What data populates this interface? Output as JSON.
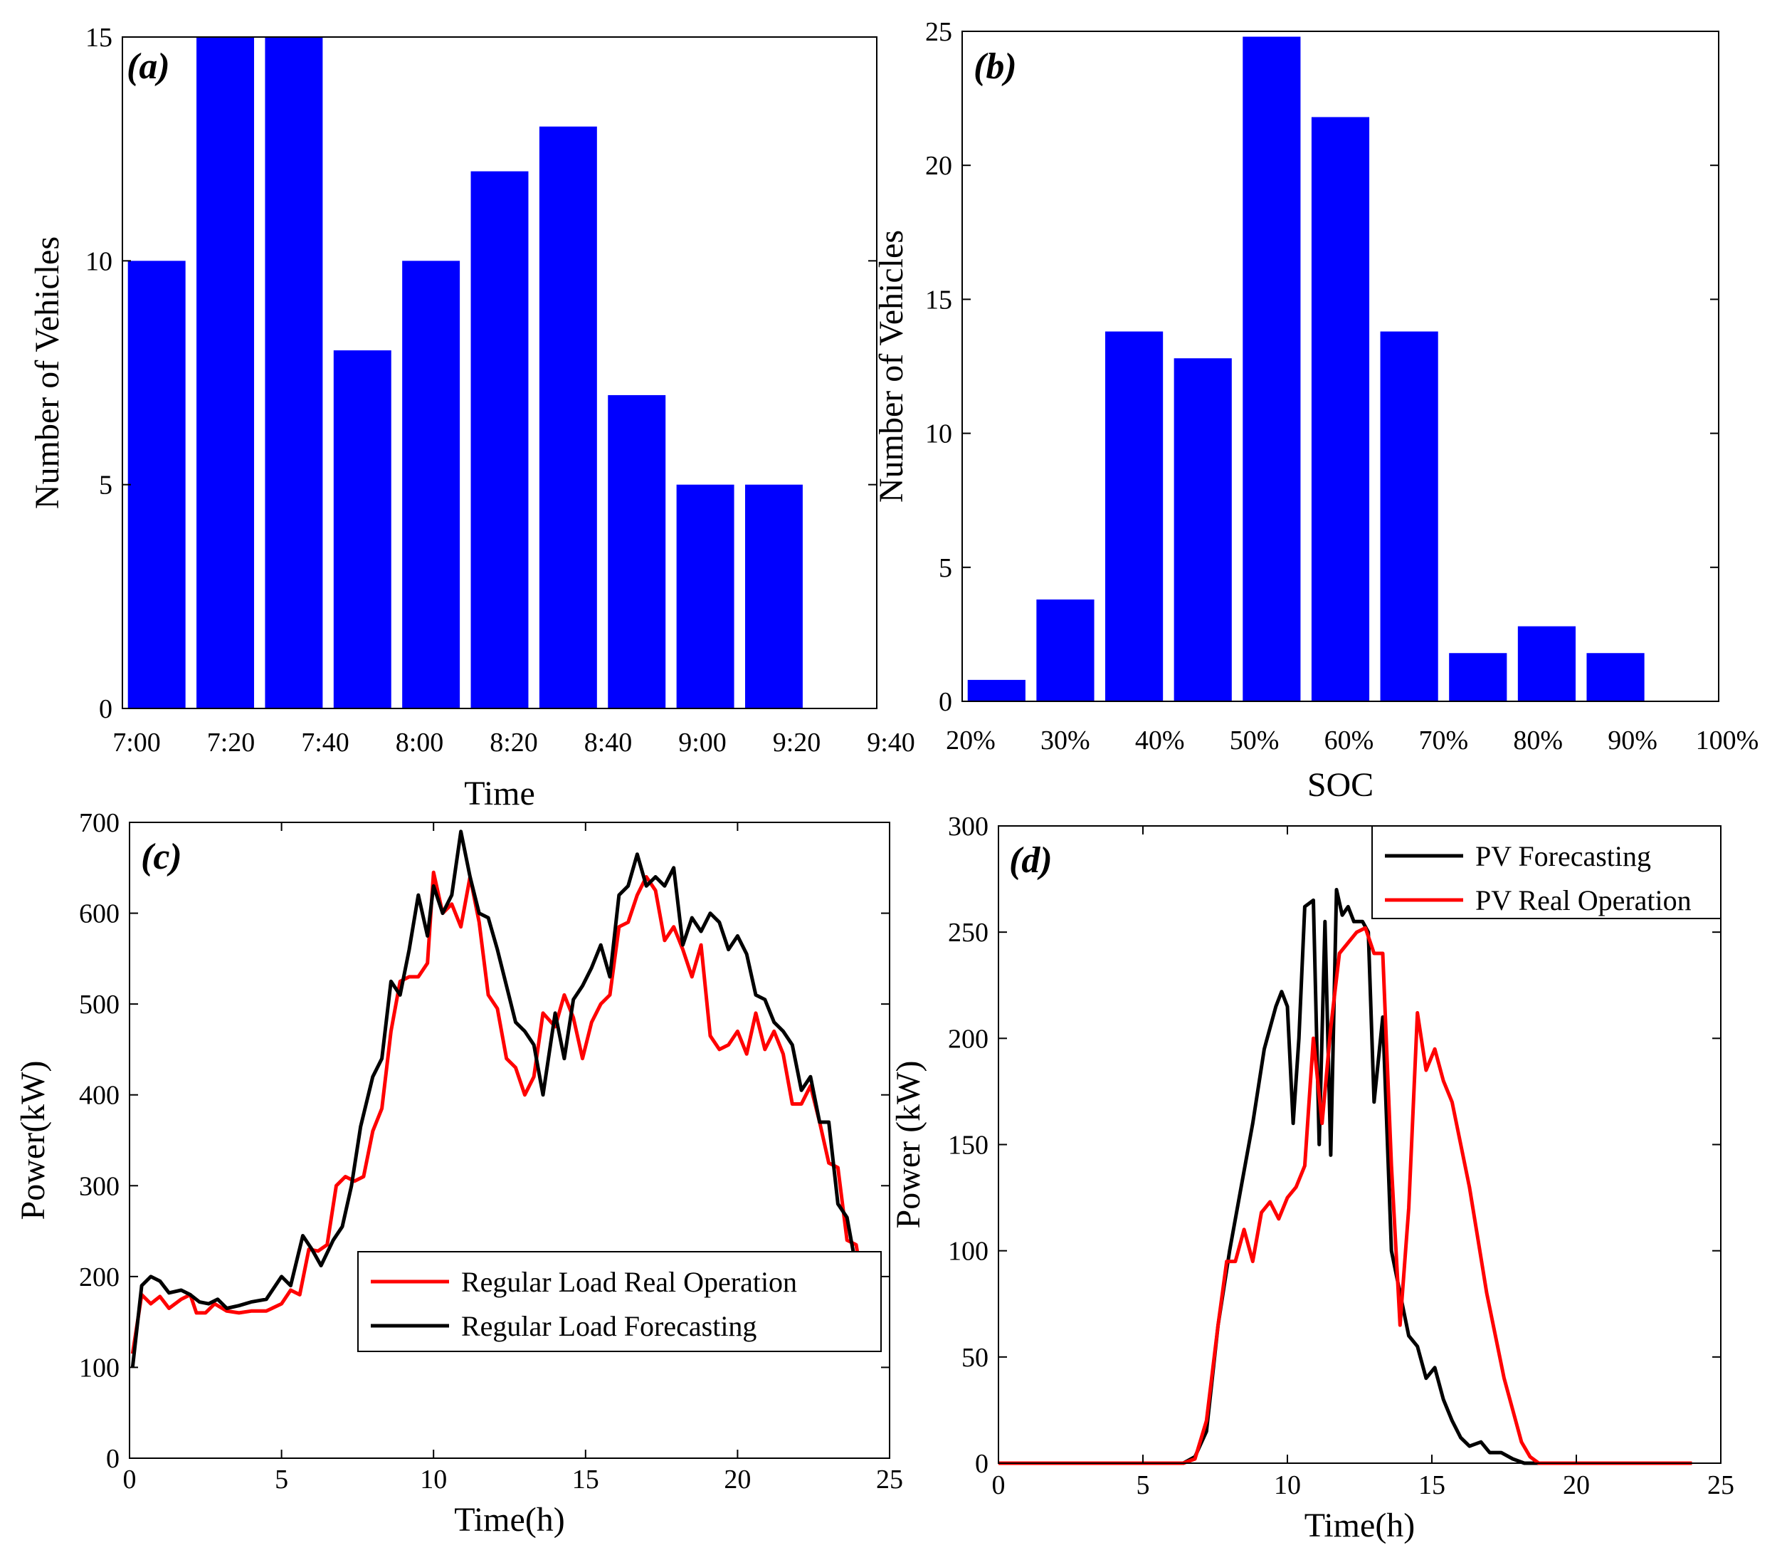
{
  "chart_data": [
    {
      "id": "a",
      "type": "bar",
      "panel_label": "(a)",
      "xlabel": "Time",
      "ylabel": "Number of Vehicles",
      "ylim": [
        0,
        15
      ],
      "yticks": [
        "0",
        "5",
        "10",
        "15"
      ],
      "xticks": [
        "7:00",
        "7:20",
        "7:40",
        "8:00",
        "8:20",
        "8:40",
        "9:00",
        "9:20",
        "9:40"
      ],
      "values": [
        10,
        15,
        15,
        8,
        10,
        12,
        13,
        7,
        5,
        5,
        0
      ],
      "bar_color": "#0000ff",
      "legend": "none"
    },
    {
      "id": "b",
      "type": "bar",
      "panel_label": "(b)",
      "xlabel": "SOC",
      "ylabel": "Number of Vehicles",
      "ylim": [
        0,
        25
      ],
      "yticks": [
        "0",
        "5",
        "10",
        "15",
        "20",
        "25"
      ],
      "xticks": [
        "20%",
        "30%",
        "40%",
        "50%",
        "60%",
        "70%",
        "80%",
        "90%",
        "100%"
      ],
      "values": [
        0.8,
        3.8,
        13.8,
        12.8,
        24.8,
        21.8,
        13.8,
        1.8,
        2.8,
        1.8,
        0
      ],
      "bar_color": "#0000ff",
      "legend": "none"
    },
    {
      "id": "c",
      "type": "line",
      "panel_label": "(c)",
      "xlabel": "Time(h)",
      "ylabel": "Power(kW)",
      "xlim": [
        0,
        25
      ],
      "ylim": [
        0,
        700
      ],
      "xticks": [
        "0",
        "5",
        "10",
        "15",
        "20",
        "25"
      ],
      "yticks": [
        "0",
        "100",
        "200",
        "300",
        "400",
        "500",
        "600",
        "700"
      ],
      "legend": "bottom-right",
      "series": [
        {
          "name": "Regular Load Real Operation",
          "color": "#ff0000",
          "points": [
            [
              0.1,
              115
            ],
            [
              0.4,
              180
            ],
            [
              0.7,
              170
            ],
            [
              1.0,
              178
            ],
            [
              1.3,
              165
            ],
            [
              1.7,
              175
            ],
            [
              2.0,
              180
            ],
            [
              2.2,
              160
            ],
            [
              2.5,
              160
            ],
            [
              2.8,
              170
            ],
            [
              3.2,
              162
            ],
            [
              3.6,
              160
            ],
            [
              4.0,
              162
            ],
            [
              4.5,
              162
            ],
            [
              5.0,
              170
            ],
            [
              5.3,
              185
            ],
            [
              5.6,
              180
            ],
            [
              5.9,
              230
            ],
            [
              6.2,
              228
            ],
            [
              6.5,
              235
            ],
            [
              6.8,
              300
            ],
            [
              7.1,
              310
            ],
            [
              7.4,
              305
            ],
            [
              7.7,
              310
            ],
            [
              8.0,
              360
            ],
            [
              8.3,
              385
            ],
            [
              8.6,
              470
            ],
            [
              8.9,
              525
            ],
            [
              9.2,
              530
            ],
            [
              9.5,
              530
            ],
            [
              9.8,
              545
            ],
            [
              10.0,
              645
            ],
            [
              10.3,
              600
            ],
            [
              10.6,
              610
            ],
            [
              10.9,
              585
            ],
            [
              11.2,
              640
            ],
            [
              11.5,
              590
            ],
            [
              11.8,
              510
            ],
            [
              12.1,
              495
            ],
            [
              12.4,
              440
            ],
            [
              12.7,
              430
            ],
            [
              13.0,
              400
            ],
            [
              13.3,
              420
            ],
            [
              13.6,
              490
            ],
            [
              14.0,
              475
            ],
            [
              14.3,
              510
            ],
            [
              14.6,
              485
            ],
            [
              14.9,
              440
            ],
            [
              15.2,
              480
            ],
            [
              15.5,
              500
            ],
            [
              15.8,
              510
            ],
            [
              16.1,
              585
            ],
            [
              16.4,
              590
            ],
            [
              16.7,
              620
            ],
            [
              17.0,
              640
            ],
            [
              17.3,
              625
            ],
            [
              17.6,
              570
            ],
            [
              17.9,
              585
            ],
            [
              18.2,
              560
            ],
            [
              18.5,
              530
            ],
            [
              18.8,
              565
            ],
            [
              19.1,
              465
            ],
            [
              19.4,
              450
            ],
            [
              19.7,
              455
            ],
            [
              20.0,
              470
            ],
            [
              20.3,
              445
            ],
            [
              20.6,
              490
            ],
            [
              20.9,
              450
            ],
            [
              21.2,
              470
            ],
            [
              21.5,
              445
            ],
            [
              21.8,
              390
            ],
            [
              22.1,
              390
            ],
            [
              22.4,
              410
            ],
            [
              22.7,
              370
            ],
            [
              23.0,
              325
            ],
            [
              23.3,
              320
            ],
            [
              23.6,
              240
            ],
            [
              23.9,
              235
            ],
            [
              24.1,
              195
            ]
          ]
        },
        {
          "name": "Regular Load Forecasting",
          "color": "#000000",
          "points": [
            [
              0.1,
              100
            ],
            [
              0.4,
              190
            ],
            [
              0.7,
              200
            ],
            [
              1.0,
              195
            ],
            [
              1.3,
              182
            ],
            [
              1.7,
              185
            ],
            [
              2.0,
              180
            ],
            [
              2.3,
              172
            ],
            [
              2.6,
              170
            ],
            [
              2.9,
              175
            ],
            [
              3.2,
              165
            ],
            [
              3.6,
              168
            ],
            [
              4.0,
              172
            ],
            [
              4.5,
              175
            ],
            [
              5.0,
              200
            ],
            [
              5.3,
              190
            ],
            [
              5.7,
              245
            ],
            [
              6.0,
              230
            ],
            [
              6.3,
              212
            ],
            [
              6.7,
              240
            ],
            [
              7.0,
              255
            ],
            [
              7.3,
              300
            ],
            [
              7.6,
              365
            ],
            [
              8.0,
              420
            ],
            [
              8.3,
              440
            ],
            [
              8.6,
              525
            ],
            [
              8.9,
              510
            ],
            [
              9.2,
              560
            ],
            [
              9.5,
              620
            ],
            [
              9.8,
              575
            ],
            [
              10.0,
              630
            ],
            [
              10.3,
              600
            ],
            [
              10.6,
              620
            ],
            [
              10.9,
              690
            ],
            [
              11.2,
              640
            ],
            [
              11.5,
              600
            ],
            [
              11.8,
              595
            ],
            [
              12.1,
              560
            ],
            [
              12.4,
              520
            ],
            [
              12.7,
              480
            ],
            [
              13.0,
              470
            ],
            [
              13.3,
              455
            ],
            [
              13.6,
              400
            ],
            [
              14.0,
              490
            ],
            [
              14.3,
              440
            ],
            [
              14.6,
              505
            ],
            [
              14.9,
              520
            ],
            [
              15.2,
              540
            ],
            [
              15.5,
              565
            ],
            [
              15.8,
              530
            ],
            [
              16.1,
              620
            ],
            [
              16.4,
              630
            ],
            [
              16.7,
              665
            ],
            [
              17.0,
              630
            ],
            [
              17.3,
              640
            ],
            [
              17.6,
              630
            ],
            [
              17.9,
              650
            ],
            [
              18.2,
              565
            ],
            [
              18.5,
              595
            ],
            [
              18.8,
              580
            ],
            [
              19.1,
              600
            ],
            [
              19.4,
              590
            ],
            [
              19.7,
              560
            ],
            [
              20.0,
              575
            ],
            [
              20.3,
              555
            ],
            [
              20.6,
              510
            ],
            [
              20.9,
              505
            ],
            [
              21.2,
              480
            ],
            [
              21.5,
              470
            ],
            [
              21.8,
              455
            ],
            [
              22.1,
              405
            ],
            [
              22.4,
              420
            ],
            [
              22.7,
              370
            ],
            [
              23.0,
              370
            ],
            [
              23.3,
              280
            ],
            [
              23.6,
              265
            ],
            [
              23.9,
              210
            ],
            [
              24.1,
              185
            ]
          ]
        }
      ]
    },
    {
      "id": "d",
      "type": "line",
      "panel_label": "(d)",
      "xlabel": "Time(h)",
      "ylabel": "Power (kW)",
      "xlim": [
        0,
        25
      ],
      "ylim": [
        0,
        300
      ],
      "xticks": [
        "0",
        "5",
        "10",
        "15",
        "20",
        "25"
      ],
      "yticks": [
        "0",
        "50",
        "100",
        "150",
        "200",
        "250",
        "300"
      ],
      "legend": "top-right",
      "series": [
        {
          "name": "PV Forecasting",
          "color": "#000000",
          "points": [
            [
              0,
              0
            ],
            [
              6.4,
              0
            ],
            [
              6.8,
              3
            ],
            [
              7.2,
              15
            ],
            [
              7.6,
              65
            ],
            [
              8.0,
              100
            ],
            [
              8.4,
              130
            ],
            [
              8.8,
              160
            ],
            [
              9.2,
              195
            ],
            [
              9.6,
              215
            ],
            [
              9.8,
              222
            ],
            [
              10.0,
              215
            ],
            [
              10.2,
              160
            ],
            [
              10.4,
              200
            ],
            [
              10.6,
              262
            ],
            [
              10.9,
              265
            ],
            [
              11.1,
              150
            ],
            [
              11.3,
              255
            ],
            [
              11.5,
              145
            ],
            [
              11.7,
              270
            ],
            [
              11.9,
              258
            ],
            [
              12.1,
              262
            ],
            [
              12.3,
              255
            ],
            [
              12.6,
              255
            ],
            [
              12.8,
              250
            ],
            [
              13.0,
              170
            ],
            [
              13.3,
              210
            ],
            [
              13.6,
              100
            ],
            [
              13.9,
              80
            ],
            [
              14.2,
              60
            ],
            [
              14.5,
              55
            ],
            [
              14.8,
              40
            ],
            [
              15.1,
              45
            ],
            [
              15.4,
              30
            ],
            [
              15.7,
              20
            ],
            [
              16.0,
              12
            ],
            [
              16.3,
              8
            ],
            [
              16.7,
              10
            ],
            [
              17.0,
              5
            ],
            [
              17.4,
              5
            ],
            [
              17.8,
              2
            ],
            [
              18.2,
              0
            ],
            [
              24.0,
              0
            ]
          ]
        },
        {
          "name": "PV Real Operation",
          "color": "#ff0000",
          "points": [
            [
              0,
              0
            ],
            [
              6.4,
              0
            ],
            [
              6.8,
              2
            ],
            [
              7.2,
              20
            ],
            [
              7.6,
              65
            ],
            [
              7.9,
              95
            ],
            [
              8.2,
              95
            ],
            [
              8.5,
              110
            ],
            [
              8.8,
              95
            ],
            [
              9.1,
              118
            ],
            [
              9.4,
              123
            ],
            [
              9.7,
              115
            ],
            [
              10.0,
              125
            ],
            [
              10.3,
              130
            ],
            [
              10.6,
              140
            ],
            [
              10.9,
              200
            ],
            [
              11.2,
              160
            ],
            [
              11.5,
              205
            ],
            [
              11.8,
              240
            ],
            [
              12.1,
              245
            ],
            [
              12.4,
              250
            ],
            [
              12.7,
              252
            ],
            [
              13.0,
              240
            ],
            [
              13.3,
              240
            ],
            [
              13.6,
              140
            ],
            [
              13.9,
              65
            ],
            [
              14.2,
              120
            ],
            [
              14.5,
              212
            ],
            [
              14.8,
              185
            ],
            [
              15.1,
              195
            ],
            [
              15.4,
              180
            ],
            [
              15.7,
              170
            ],
            [
              16.0,
              150
            ],
            [
              16.3,
              130
            ],
            [
              16.6,
              105
            ],
            [
              16.9,
              80
            ],
            [
              17.2,
              60
            ],
            [
              17.5,
              40
            ],
            [
              17.8,
              25
            ],
            [
              18.1,
              10
            ],
            [
              18.4,
              3
            ],
            [
              18.7,
              0
            ],
            [
              24.0,
              0
            ]
          ]
        }
      ]
    }
  ]
}
